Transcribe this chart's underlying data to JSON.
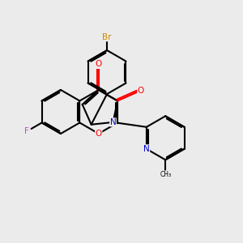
{
  "bg_color": "#ebebeb",
  "bond_color": "#000000",
  "bond_lw": 1.5,
  "atom_colors": {
    "O": "#ff0000",
    "N": "#0000cc",
    "F": "#cc44cc",
    "Br": "#cc8800"
  },
  "fs": 7.5
}
